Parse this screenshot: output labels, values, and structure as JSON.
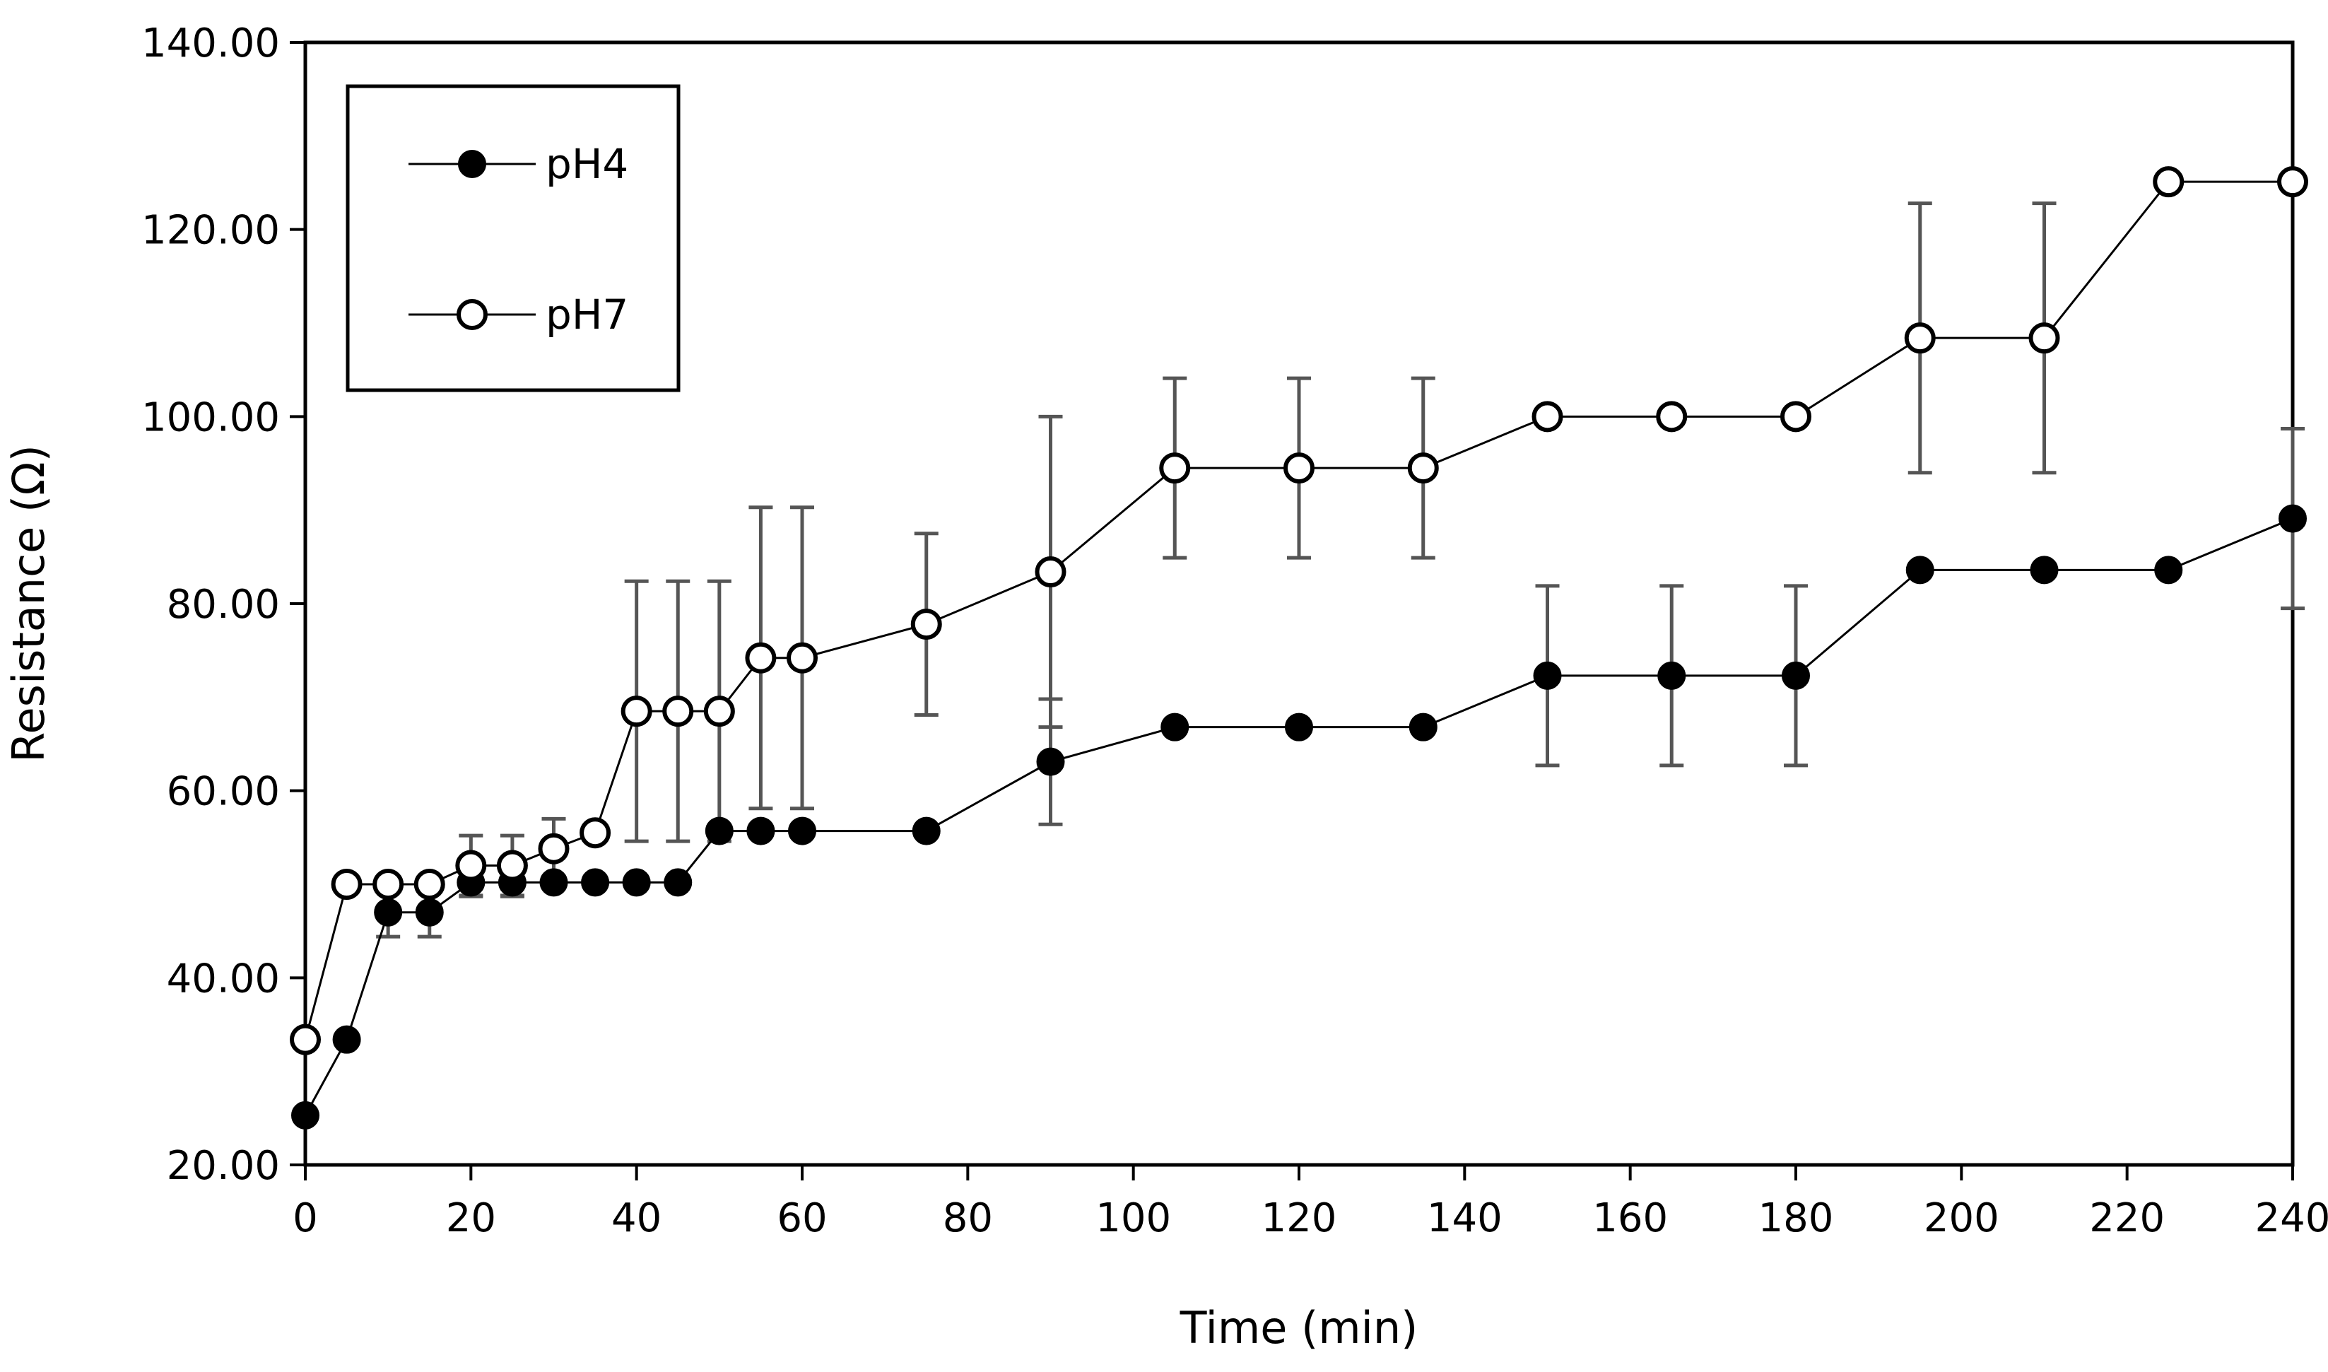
{
  "chart_data": {
    "type": "line",
    "title": "",
    "xlabel": "Time (min)",
    "ylabel": "Resistance (Ω)",
    "xlim": [
      0,
      240
    ],
    "ylim": [
      20,
      140
    ],
    "xticks": [
      0,
      20,
      40,
      60,
      80,
      100,
      120,
      140,
      160,
      180,
      200,
      220,
      240
    ],
    "yticks": [
      20,
      40,
      60,
      80,
      100,
      120,
      140
    ],
    "ytick_labels": [
      "20.00",
      "40.00",
      "60.00",
      "80.00",
      "100.00",
      "120.00",
      "140.00"
    ],
    "grid": false,
    "legend_position": "top-left",
    "series": [
      {
        "name": "pH4",
        "marker": "filled-circle",
        "color": "#000000",
        "x": [
          0,
          5,
          10,
          15,
          20,
          25,
          30,
          35,
          40,
          45,
          50,
          55,
          60,
          75,
          90,
          105,
          120,
          135,
          150,
          165,
          180,
          195,
          210,
          225,
          240
        ],
        "y": [
          25.3,
          33.4,
          47.0,
          47.0,
          50.2,
          50.2,
          50.2,
          50.2,
          50.2,
          50.2,
          55.7,
          55.7,
          55.7,
          55.7,
          63.1,
          66.8,
          66.8,
          66.8,
          72.3,
          72.3,
          72.3,
          83.6,
          83.6,
          83.6,
          89.1
        ],
        "err": [
          0,
          0,
          2.6,
          2.6,
          1.5,
          1.5,
          0,
          0,
          0,
          0,
          0,
          0,
          0,
          0,
          6.7,
          0,
          0,
          0,
          9.6,
          9.6,
          9.6,
          0,
          0,
          0,
          9.6
        ]
      },
      {
        "name": "pH7",
        "marker": "open-circle",
        "color": "#000000",
        "x": [
          0,
          5,
          10,
          15,
          20,
          25,
          30,
          35,
          40,
          45,
          50,
          55,
          60,
          75,
          90,
          105,
          120,
          135,
          150,
          165,
          180,
          195,
          210,
          225,
          240
        ],
        "y": [
          33.4,
          50.0,
          50.0,
          50.0,
          52.0,
          52.0,
          53.8,
          55.5,
          68.5,
          68.5,
          68.5,
          74.2,
          74.2,
          77.8,
          83.4,
          94.5,
          94.5,
          94.5,
          100.0,
          100.0,
          100.0,
          108.4,
          108.4,
          125.1,
          125.1
        ],
        "err": [
          0,
          0,
          0,
          0,
          3.2,
          3.2,
          3.2,
          0,
          13.9,
          13.9,
          13.9,
          16.1,
          16.1,
          9.7,
          16.6,
          9.6,
          9.6,
          9.6,
          0,
          0,
          0,
          14.4,
          14.4,
          0,
          0
        ]
      }
    ]
  }
}
